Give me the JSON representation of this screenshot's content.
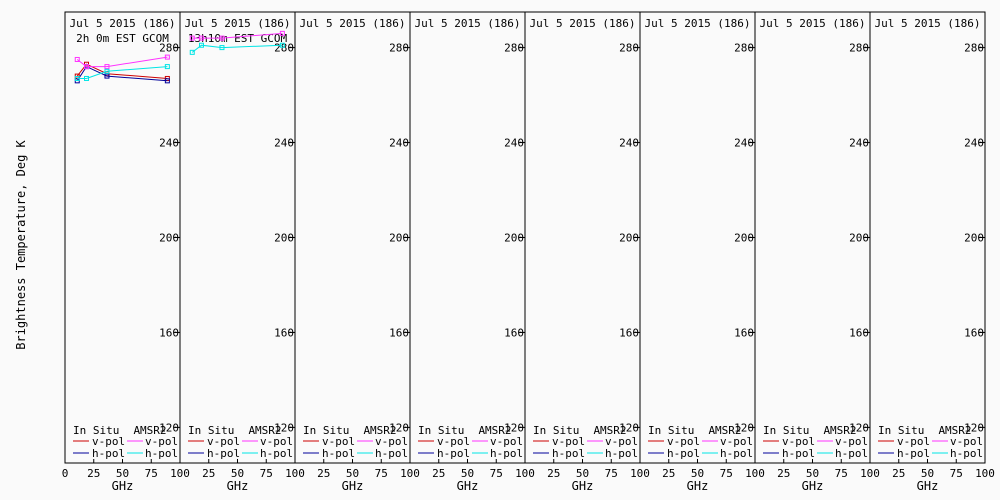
{
  "colors": {
    "background": "#fafafa",
    "frame": "#000000",
    "insitu_v": "#cc0000",
    "insitu_h": "#000099",
    "amsr2_v": "#ff33ff",
    "amsr2_h": "#00e5e5"
  },
  "chart_data": {
    "type": "line",
    "ylabel": "Brightness Temperature, Deg K",
    "ylim": [
      105,
      295
    ],
    "yticks": [
      120,
      160,
      200,
      240,
      280
    ],
    "xlim": [
      0,
      100
    ],
    "xticks": [
      0,
      25,
      50,
      75,
      100
    ],
    "xlabel": "GHz",
    "legend": {
      "group1": "In Situ",
      "group2": "AMSR2",
      "v_label": "v-pol",
      "h_label": "h-pol"
    },
    "panels": [
      {
        "date": "Jul 5 2015 (186)",
        "time_label": "2h 0m EST GCOM",
        "series": [
          {
            "name": "In Situ v-pol",
            "x": [
              10.65,
              18.7,
              36.5,
              89.0
            ],
            "y": [
              268,
              273,
              269,
              267
            ]
          },
          {
            "name": "In Situ h-pol",
            "x": [
              10.65,
              18.7,
              36.5,
              89.0
            ],
            "y": [
              266,
              272,
              268,
              266
            ]
          },
          {
            "name": "AMSR2 v-pol",
            "x": [
              10.65,
              18.7,
              36.5,
              89.0
            ],
            "y": [
              275,
              272,
              272,
              276
            ]
          },
          {
            "name": "AMSR2 h-pol",
            "x": [
              10.65,
              18.7,
              36.5,
              89.0
            ],
            "y": [
              267,
              267,
              270,
              272
            ]
          }
        ]
      },
      {
        "date": "Jul 5 2015 (186)",
        "time_label": "13h10m EST GCOM",
        "series": [
          {
            "name": "AMSR2 v-pol",
            "x": [
              10.65,
              18.7,
              36.5,
              89.0
            ],
            "y": [
              284,
              284,
              284,
              286
            ]
          },
          {
            "name": "AMSR2 h-pol",
            "x": [
              10.65,
              18.7,
              36.5,
              89.0
            ],
            "y": [
              278,
              281,
              280,
              281
            ]
          }
        ]
      },
      {
        "date": "Jul 5 2015 (186)",
        "time_label": "",
        "series": []
      },
      {
        "date": "Jul 5 2015 (186)",
        "time_label": "",
        "series": []
      },
      {
        "date": "Jul 5 2015 (186)",
        "time_label": "",
        "series": []
      },
      {
        "date": "Jul 5 2015 (186)",
        "time_label": "",
        "series": []
      },
      {
        "date": "Jul 5 2015 (186)",
        "time_label": "",
        "series": []
      },
      {
        "date": "Jul 5 2015 (186)",
        "time_label": "",
        "series": []
      }
    ]
  }
}
